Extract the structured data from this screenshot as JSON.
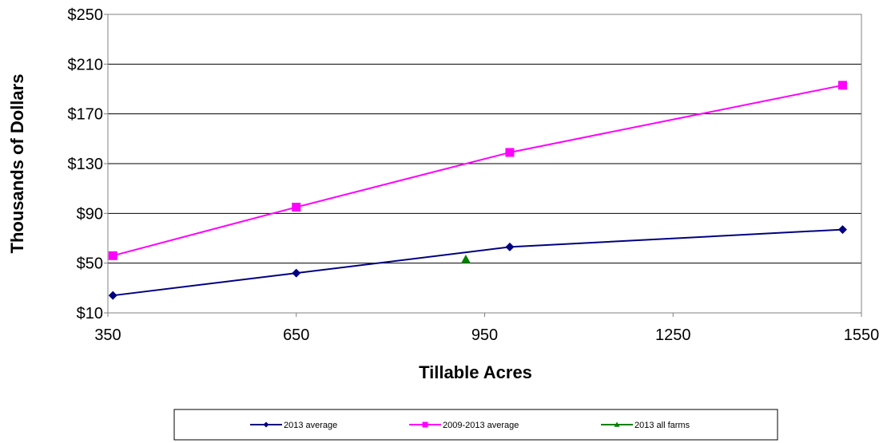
{
  "chart_data": {
    "type": "line",
    "title": "",
    "xlabel": "Tillable Acres",
    "ylabel": "Thousands of Dollars",
    "xlim": [
      350,
      1550
    ],
    "ylim": [
      10,
      250
    ],
    "x_ticks": [
      350,
      650,
      950,
      1250,
      1550
    ],
    "y_ticks": [
      10,
      50,
      90,
      130,
      170,
      210,
      250
    ],
    "y_tick_labels": [
      "$10",
      "$50",
      "$90",
      "$130",
      "$170",
      "$210",
      "$250"
    ],
    "grid": "horizontal",
    "legend_position": "bottom",
    "series": [
      {
        "name": "2013 average",
        "color": "#000080",
        "marker": "diamond",
        "line": true,
        "points": [
          {
            "x": 358,
            "y": 24
          },
          {
            "x": 650,
            "y": 42
          },
          {
            "x": 990,
            "y": 63
          },
          {
            "x": 1520,
            "y": 77
          }
        ]
      },
      {
        "name": "2009-2013 average",
        "color": "#FF00FF",
        "marker": "square",
        "line": true,
        "points": [
          {
            "x": 358,
            "y": 56
          },
          {
            "x": 650,
            "y": 95
          },
          {
            "x": 990,
            "y": 139
          },
          {
            "x": 1520,
            "y": 193
          }
        ]
      },
      {
        "name": "2013 all farms",
        "color": "#008000",
        "marker": "triangle",
        "line": false,
        "points": [
          {
            "x": 920,
            "y": 53
          }
        ]
      }
    ]
  }
}
